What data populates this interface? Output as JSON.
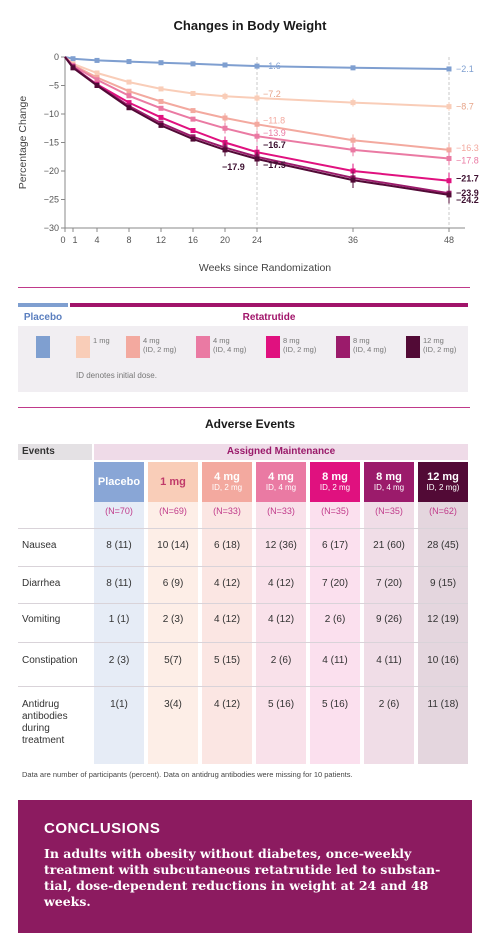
{
  "chart_data": {
    "type": "line",
    "title": "Changes in Body Weight",
    "xlabel": "Weeks since Randomization",
    "ylabel": "Percentage Change",
    "x_ticks": [
      "0",
      "1",
      "4",
      "8",
      "12",
      "16",
      "20",
      "24",
      "36",
      "48"
    ],
    "y_ticks": [
      "0",
      "−5",
      "−10",
      "−15",
      "−20",
      "−25",
      "−30"
    ],
    "xlim": [
      0,
      50
    ],
    "ylim": [
      -30,
      0
    ],
    "x": [
      0,
      1,
      4,
      8,
      12,
      16,
      20,
      24,
      36,
      48
    ],
    "series": [
      {
        "color": "#7f9fd0",
        "values": [
          0,
          -0.3,
          -0.6,
          -0.8,
          -1.0,
          -1.2,
          -1.4,
          -1.6,
          -1.9,
          -2.1
        ],
        "end_label_24": "−1.6",
        "end_label_48": "−2.1"
      },
      {
        "color": "#f9cdb8",
        "values": [
          0,
          -1.2,
          -2.8,
          -4.4,
          -5.6,
          -6.4,
          -6.9,
          -7.2,
          -8.0,
          -8.7
        ],
        "end_label_24": "−7.2",
        "end_label_48": "−8.7"
      },
      {
        "color": "#f3a99f",
        "values": [
          0,
          -1.4,
          -3.6,
          -6.0,
          -7.8,
          -9.4,
          -10.7,
          -11.8,
          -14.6,
          -16.3
        ],
        "end_label_24": "−11.8",
        "end_label_48": "−16.3"
      },
      {
        "color": "#ea7aa3",
        "values": [
          0,
          -1.5,
          -4.0,
          -6.8,
          -9.0,
          -10.9,
          -12.5,
          -13.9,
          -16.3,
          -17.8
        ],
        "end_label_24": "−13.9",
        "end_label_48": "−17.8"
      },
      {
        "color": "#e0117f",
        "values": [
          0,
          -1.8,
          -4.8,
          -8.0,
          -10.6,
          -12.9,
          -15.0,
          -16.7,
          -20.0,
          -21.7
        ],
        "end_label_24": "−16.7",
        "end_label_48": "−21.7"
      },
      {
        "color": "#9b1b6b",
        "values": [
          0,
          -1.7,
          -4.9,
          -8.6,
          -11.6,
          -14.0,
          -15.9,
          -17.5,
          -21.2,
          -23.9
        ],
        "end_label_24": "−17.5",
        "end_label_48": "−23.9"
      },
      {
        "color": "#520a36",
        "values": [
          0,
          -1.9,
          -5.0,
          -8.9,
          -12.0,
          -14.4,
          -16.3,
          -17.9,
          -21.6,
          -24.2
        ],
        "end_label_24": "−17.9",
        "end_label_48": "−24.2"
      }
    ]
  },
  "legend": {
    "placebo_header": "Placebo",
    "retatrutide_header": "Retatrutide",
    "items": [
      {
        "label": "",
        "color": "#7f9fd0"
      },
      {
        "label": "1 mg",
        "color": "#f9cdb8"
      },
      {
        "label": "4 mg\n(ID, 2 mg)",
        "color": "#f3a99f"
      },
      {
        "label": "4 mg\n(ID, 4 mg)",
        "color": "#ea7aa3"
      },
      {
        "label": "8 mg\n(ID, 2 mg)",
        "color": "#e0117f"
      },
      {
        "label": "8 mg\n(ID, 4 mg)",
        "color": "#9b1b6b"
      },
      {
        "label": "12 mg\n(ID, 2 mg)",
        "color": "#520a36"
      }
    ],
    "note": "ID denotes initial dose."
  },
  "adverse_events": {
    "title": "Adverse Events",
    "events_header": "Events",
    "assigned_header": "Assigned Maintenance",
    "columns": [
      {
        "name": "Placebo",
        "dose": "",
        "n": "(N=70)",
        "bg": "#e6ecf6",
        "head": "#89a6d6"
      },
      {
        "name": "1 mg",
        "dose": "",
        "n": "(N=69)",
        "bg": "#fdeee7",
        "head": "#f9cdb8"
      },
      {
        "name": "4 mg",
        "dose": "ID, 2 mg",
        "n": "(N=33)",
        "bg": "#fbe6e3",
        "head": "#f3a99f"
      },
      {
        "name": "4 mg",
        "dose": "ID, 4 mg",
        "n": "(N=33)",
        "bg": "#f9e1ea",
        "head": "#ea7aa3"
      },
      {
        "name": "8 mg",
        "dose": "ID, 2 mg",
        "n": "(N=35)",
        "bg": "#fbe0ee",
        "head": "#e0117f"
      },
      {
        "name": "8 mg",
        "dose": "ID, 4 mg",
        "n": "(N=35)",
        "bg": "#f0dde7",
        "head": "#9b1b6b"
      },
      {
        "name": "12 mg",
        "dose": "ID, 2 mg)",
        "n": "(N=62)",
        "bg": "#e4d6de",
        "head": "#520a36"
      }
    ],
    "rows": [
      {
        "label": "Nausea",
        "values": [
          "8 (11)",
          "10 (14)",
          "6 (18)",
          "12 (36)",
          "6 (17)",
          "21 (60)",
          "28 (45)"
        ]
      },
      {
        "label": "Diarrhea",
        "values": [
          "8 (11)",
          "6 (9)",
          "4 (12)",
          "4 (12)",
          "7 (20)",
          "7 (20)",
          "9 (15)"
        ]
      },
      {
        "label": "Vomiting",
        "values": [
          "1 (1)",
          "2 (3)",
          "4 (12)",
          "4 (12)",
          "2 (6)",
          "9 (26)",
          "12 (19)"
        ]
      },
      {
        "label": "Constipation",
        "values": [
          "2 (3)",
          "5(7)",
          "5 (15)",
          "2 (6)",
          "4 (11)",
          "4 (11)",
          "10 (16)"
        ]
      },
      {
        "label": "Antidrug\nantibodies\nduring\ntreatment",
        "values": [
          "1(1)",
          "3(4)",
          "4 (12)",
          "5 (16)",
          "5 (16)",
          "2 (6)",
          "11 (18)"
        ]
      }
    ],
    "footnote": "Data are number of participants (percent). Data on antidrug antibodies were missing for 10 patients."
  },
  "conclusions": {
    "title": "CONCLUSIONS",
    "text": "In adults with obesity without diabetes, once-weekly treatment with subcutaneous retatrutide led to substan-tial, dose-dependent reductions in weight at 24 and 48 weeks."
  }
}
